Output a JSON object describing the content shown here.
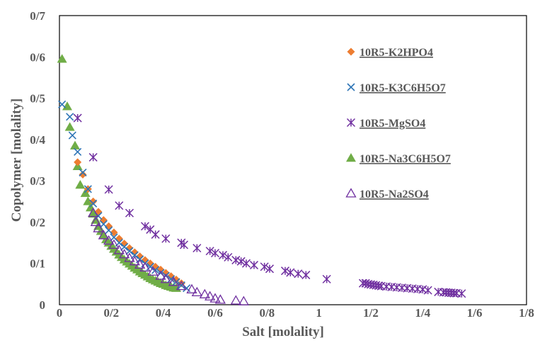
{
  "chart_data": {
    "type": "scatter",
    "xlabel": "Salt [molality]",
    "ylabel": "Copolymer [molality]",
    "xlim": [
      0,
      1.8
    ],
    "ylim": [
      0,
      0.7
    ],
    "x_ticks": [
      0,
      0.2,
      0.4,
      0.6,
      0.8,
      1,
      1.2,
      1.4,
      1.6,
      1.8
    ],
    "x_tick_labels": [
      "0",
      "0/2",
      "0/4",
      "0/6",
      "0/8",
      "1",
      "1/2",
      "1/4",
      "1/6",
      "1/8"
    ],
    "y_ticks": [
      0,
      0.1,
      0.2,
      0.3,
      0.4,
      0.5,
      0.6,
      0.7
    ],
    "y_tick_labels": [
      "0",
      "0/1",
      "0/2",
      "0/3",
      "0/4",
      "0/5",
      "0/6",
      "0/7"
    ],
    "grid": false,
    "legend_position": "right",
    "series": [
      {
        "name": "10R5-K2HPO4",
        "marker": "diamond",
        "color": "#ED7D31",
        "points": [
          [
            0.07,
            0.345
          ],
          [
            0.09,
            0.315
          ],
          [
            0.11,
            0.28
          ],
          [
            0.13,
            0.25
          ],
          [
            0.15,
            0.225
          ],
          [
            0.17,
            0.205
          ],
          [
            0.19,
            0.19
          ],
          [
            0.21,
            0.175
          ],
          [
            0.23,
            0.16
          ],
          [
            0.25,
            0.148
          ],
          [
            0.27,
            0.137
          ],
          [
            0.29,
            0.127
          ],
          [
            0.31,
            0.117
          ],
          [
            0.33,
            0.108
          ],
          [
            0.35,
            0.1
          ],
          [
            0.37,
            0.092
          ],
          [
            0.39,
            0.085
          ],
          [
            0.41,
            0.077
          ],
          [
            0.43,
            0.069
          ],
          [
            0.45,
            0.061
          ],
          [
            0.47,
            0.052
          ]
        ]
      },
      {
        "name": "10R5-K3C6H5O7",
        "marker": "x",
        "color": "#2E75B6",
        "points": [
          [
            0.01,
            0.485
          ],
          [
            0.04,
            0.455
          ],
          [
            0.05,
            0.41
          ],
          [
            0.07,
            0.37
          ],
          [
            0.09,
            0.32
          ],
          [
            0.11,
            0.28
          ],
          [
            0.13,
            0.245
          ],
          [
            0.15,
            0.215
          ],
          [
            0.17,
            0.195
          ],
          [
            0.19,
            0.18
          ],
          [
            0.21,
            0.163
          ],
          [
            0.23,
            0.15
          ],
          [
            0.25,
            0.14
          ],
          [
            0.27,
            0.13
          ],
          [
            0.29,
            0.12
          ],
          [
            0.31,
            0.11
          ],
          [
            0.33,
            0.1
          ],
          [
            0.35,
            0.092
          ],
          [
            0.37,
            0.084
          ],
          [
            0.39,
            0.077
          ],
          [
            0.41,
            0.07
          ],
          [
            0.43,
            0.062
          ],
          [
            0.45,
            0.055
          ],
          [
            0.47,
            0.047
          ],
          [
            0.49,
            0.04
          ]
        ]
      },
      {
        "name": "10R5-MgSO4",
        "marker": "asterisk",
        "color": "#7030A0",
        "points": [
          [
            0.07,
            0.452
          ],
          [
            0.13,
            0.357
          ],
          [
            0.19,
            0.279
          ],
          [
            0.23,
            0.24
          ],
          [
            0.27,
            0.222
          ],
          [
            0.33,
            0.19
          ],
          [
            0.35,
            0.182
          ],
          [
            0.37,
            0.17
          ],
          [
            0.41,
            0.16
          ],
          [
            0.47,
            0.15
          ],
          [
            0.48,
            0.145
          ],
          [
            0.53,
            0.137
          ],
          [
            0.58,
            0.13
          ],
          [
            0.6,
            0.125
          ],
          [
            0.63,
            0.12
          ],
          [
            0.65,
            0.115
          ],
          [
            0.68,
            0.108
          ],
          [
            0.7,
            0.105
          ],
          [
            0.72,
            0.1
          ],
          [
            0.75,
            0.096
          ],
          [
            0.79,
            0.092
          ],
          [
            0.81,
            0.087
          ],
          [
            0.87,
            0.082
          ],
          [
            0.89,
            0.078
          ],
          [
            0.92,
            0.075
          ],
          [
            0.95,
            0.072
          ],
          [
            1.03,
            0.062
          ],
          [
            1.17,
            0.052
          ],
          [
            1.18,
            0.052
          ],
          [
            1.19,
            0.05
          ],
          [
            1.2,
            0.049
          ],
          [
            1.21,
            0.048
          ],
          [
            1.22,
            0.047
          ],
          [
            1.23,
            0.046
          ],
          [
            1.24,
            0.045
          ],
          [
            1.26,
            0.044
          ],
          [
            1.28,
            0.043
          ],
          [
            1.3,
            0.042
          ],
          [
            1.32,
            0.041
          ],
          [
            1.34,
            0.04
          ],
          [
            1.36,
            0.039
          ],
          [
            1.38,
            0.038
          ],
          [
            1.4,
            0.037
          ],
          [
            1.42,
            0.035
          ],
          [
            1.46,
            0.031
          ],
          [
            1.48,
            0.03
          ],
          [
            1.49,
            0.03
          ],
          [
            1.5,
            0.029
          ],
          [
            1.51,
            0.029
          ],
          [
            1.52,
            0.028
          ],
          [
            1.53,
            0.028
          ],
          [
            1.55,
            0.027
          ]
        ]
      },
      {
        "name": "10R5-Na3C6H5O7",
        "marker": "triangle",
        "color": "#70AD47",
        "points": [
          [
            0.01,
            0.595
          ],
          [
            0.03,
            0.48
          ],
          [
            0.04,
            0.43
          ],
          [
            0.06,
            0.385
          ],
          [
            0.07,
            0.335
          ],
          [
            0.08,
            0.29
          ],
          [
            0.1,
            0.27
          ],
          [
            0.11,
            0.25
          ],
          [
            0.12,
            0.235
          ],
          [
            0.13,
            0.22
          ],
          [
            0.14,
            0.205
          ],
          [
            0.15,
            0.19
          ],
          [
            0.16,
            0.178
          ],
          [
            0.17,
            0.168
          ],
          [
            0.18,
            0.158
          ],
          [
            0.19,
            0.15
          ],
          [
            0.2,
            0.142
          ],
          [
            0.21,
            0.135
          ],
          [
            0.22,
            0.128
          ],
          [
            0.23,
            0.121
          ],
          [
            0.24,
            0.115
          ],
          [
            0.25,
            0.109
          ],
          [
            0.26,
            0.104
          ],
          [
            0.27,
            0.099
          ],
          [
            0.28,
            0.094
          ],
          [
            0.29,
            0.089
          ],
          [
            0.3,
            0.085
          ],
          [
            0.31,
            0.08
          ],
          [
            0.32,
            0.076
          ],
          [
            0.33,
            0.072
          ],
          [
            0.34,
            0.068
          ],
          [
            0.35,
            0.064
          ],
          [
            0.36,
            0.061
          ],
          [
            0.37,
            0.058
          ],
          [
            0.38,
            0.055
          ],
          [
            0.39,
            0.052
          ],
          [
            0.4,
            0.05
          ],
          [
            0.41,
            0.047
          ],
          [
            0.42,
            0.045
          ],
          [
            0.43,
            0.043
          ],
          [
            0.44,
            0.041
          ],
          [
            0.45,
            0.04
          ]
        ]
      },
      {
        "name": "10R5-Na2SO4",
        "marker": "triangle-open",
        "color": "#7030A0",
        "points": [
          [
            0.13,
            0.222
          ],
          [
            0.14,
            0.2
          ],
          [
            0.15,
            0.185
          ],
          [
            0.17,
            0.168
          ],
          [
            0.19,
            0.155
          ],
          [
            0.21,
            0.145
          ],
          [
            0.23,
            0.132
          ],
          [
            0.25,
            0.122
          ],
          [
            0.27,
            0.113
          ],
          [
            0.29,
            0.105
          ],
          [
            0.31,
            0.097
          ],
          [
            0.33,
            0.09
          ],
          [
            0.36,
            0.08
          ],
          [
            0.39,
            0.07
          ],
          [
            0.41,
            0.062
          ],
          [
            0.44,
            0.055
          ],
          [
            0.47,
            0.045
          ],
          [
            0.51,
            0.037
          ],
          [
            0.53,
            0.03
          ],
          [
            0.56,
            0.025
          ],
          [
            0.58,
            0.02
          ],
          [
            0.6,
            0.015
          ],
          [
            0.62,
            0.012
          ],
          [
            0.68,
            0.01
          ],
          [
            0.71,
            0.008
          ]
        ]
      }
    ]
  }
}
